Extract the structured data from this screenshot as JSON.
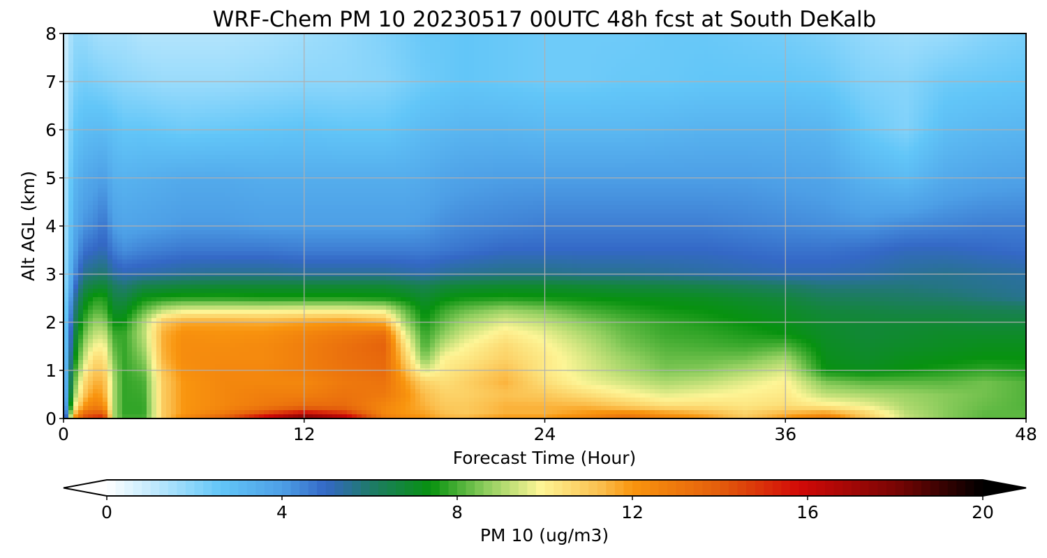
{
  "chart_data": {
    "type": "heatmap",
    "title": "WRF-Chem PM 10  20230517 00UTC 48h fcst at South DeKalb",
    "xlabel": "Forecast Time (Hour)",
    "ylabel": "Alt AGL (km)",
    "xlim": [
      0,
      48
    ],
    "ylim": [
      0,
      8
    ],
    "xticks": [
      0,
      12,
      24,
      36,
      48
    ],
    "yticks": [
      0,
      1,
      2,
      3,
      4,
      5,
      6,
      7,
      8
    ],
    "grid": true,
    "colorbar": {
      "label": "PM 10  (ug/m3)",
      "range": [
        0,
        20
      ],
      "ticks": [
        0,
        4,
        8,
        12,
        16,
        20
      ],
      "extend": "both",
      "orientation": "horizontal",
      "stops": [
        {
          "v": 0,
          "color": "#ffffff"
        },
        {
          "v": 1.5,
          "color": "#a6e0fc"
        },
        {
          "v": 2.6,
          "color": "#62c6f8"
        },
        {
          "v": 4,
          "color": "#4d9fe6"
        },
        {
          "v": 5,
          "color": "#3468c6"
        },
        {
          "v": 6,
          "color": "#1f7a6a"
        },
        {
          "v": 7.4,
          "color": "#07920f"
        },
        {
          "v": 8.7,
          "color": "#92cf60"
        },
        {
          "v": 9.9,
          "color": "#fdf596"
        },
        {
          "v": 11.3,
          "color": "#fbbe4c"
        },
        {
          "v": 12,
          "color": "#f9950e"
        },
        {
          "v": 14,
          "color": "#e35d0c"
        },
        {
          "v": 15.8,
          "color": "#d20a08"
        },
        {
          "v": 18,
          "color": "#7a0504"
        },
        {
          "v": 20,
          "color": "#000000"
        }
      ]
    },
    "x_hours": [
      0,
      0.5,
      1,
      1.5,
      2,
      2.5,
      3,
      4,
      5,
      6,
      8,
      10,
      12,
      14,
      16,
      17,
      18,
      19,
      20,
      22,
      24,
      26,
      28,
      30,
      32,
      34,
      36,
      38,
      40,
      42,
      44,
      46,
      48
    ],
    "z_km": [
      0,
      0.1,
      0.25,
      0.5,
      0.75,
      1,
      1.25,
      1.5,
      1.75,
      2,
      2.25,
      2.5,
      2.75,
      3,
      3.5,
      4,
      5,
      6,
      7,
      8
    ],
    "values": [
      [
        3,
        12,
        14.5,
        15,
        15.5,
        9,
        8,
        8,
        11,
        12.5,
        14,
        16.5,
        18.5,
        17,
        13,
        12.5,
        12,
        11.5,
        11.5,
        12,
        12,
        12.5,
        13.5,
        12.5,
        12,
        11,
        12,
        13,
        11,
        9.3,
        8.6,
        8.2,
        8.2
      ],
      [
        2.5,
        11,
        13.5,
        14,
        14,
        9,
        7.8,
        7.8,
        11,
        12,
        13,
        14.5,
        16,
        15,
        12.5,
        12,
        11.8,
        11.3,
        11,
        11.5,
        11.5,
        12,
        12.5,
        12,
        11.5,
        10.8,
        11.5,
        12,
        10.8,
        9.2,
        8.6,
        8.2,
        8.2
      ],
      [
        2.3,
        9.5,
        12,
        12.8,
        12.5,
        9,
        7.8,
        7.8,
        11,
        12,
        12.5,
        13,
        13.5,
        13.5,
        12.5,
        12,
        11.5,
        11,
        11,
        11.5,
        11.5,
        11.5,
        11,
        10.5,
        10.5,
        10.3,
        10.5,
        10.2,
        9.8,
        9,
        8.6,
        8.3,
        8.1
      ],
      [
        2.1,
        8.5,
        11,
        12,
        11.8,
        9,
        7.8,
        7.9,
        11,
        12,
        12.5,
        12.8,
        12.8,
        13.2,
        13,
        12.2,
        11.3,
        10.8,
        10.8,
        11.2,
        11,
        10.5,
        10,
        9.6,
        9.8,
        10,
        10.2,
        9.2,
        9,
        8.8,
        8.6,
        8.4,
        8.1
      ],
      [
        2,
        8,
        10.5,
        11.5,
        11.5,
        9,
        7.8,
        8,
        11,
        12,
        12.5,
        12.5,
        12.5,
        13,
        13.2,
        12,
        10.8,
        10.5,
        10.8,
        11.5,
        10.5,
        9.8,
        9.4,
        9,
        9.2,
        9.6,
        10,
        8.5,
        8.2,
        8.2,
        8.2,
        8.4,
        8.1
      ],
      [
        2,
        7.5,
        9.8,
        11,
        11,
        8.8,
        7.8,
        8.3,
        11.2,
        12.2,
        12.5,
        12.5,
        12.8,
        13.2,
        13.5,
        11.5,
        9.5,
        10.2,
        10.5,
        11.2,
        10.2,
        9.6,
        9,
        8.5,
        8.6,
        9,
        9.5,
        7.4,
        7.2,
        7.4,
        7.6,
        7.8,
        7.6
      ],
      [
        1.9,
        7,
        9.2,
        10.5,
        10.5,
        8.5,
        7.8,
        8.6,
        11.5,
        12.3,
        12.4,
        12.4,
        12.8,
        13.3,
        13.6,
        11,
        8.5,
        10,
        10.2,
        10.8,
        10.2,
        9.5,
        8.8,
        8.3,
        8.3,
        8.4,
        8.9,
        7.2,
        7,
        7.2,
        7.3,
        7.4,
        7.4
      ],
      [
        1.8,
        6.6,
        8.8,
        9.8,
        10,
        8.2,
        7.8,
        8.9,
        11.6,
        12.3,
        12.3,
        12.4,
        12.8,
        13.3,
        13.8,
        10.5,
        8,
        9.3,
        9.9,
        10.6,
        10,
        9.3,
        8.5,
        8.1,
        8,
        7.9,
        8.1,
        7.1,
        6.9,
        7,
        7.1,
        7.2,
        7.2
      ],
      [
        1.8,
        6.3,
        8.3,
        9.2,
        9.4,
        7.9,
        7.8,
        9.1,
        11.6,
        12.2,
        12.1,
        12.2,
        12.6,
        13,
        13.4,
        9.8,
        7.8,
        8.7,
        9.4,
        10.2,
        9.7,
        9,
        8.3,
        7.9,
        7.8,
        7.6,
        7.4,
        7,
        6.8,
        6.9,
        7,
        7,
        7
      ],
      [
        1.7,
        5.9,
        7.8,
        8.7,
        8.7,
        7.4,
        7.4,
        9,
        11.1,
        11.7,
        11.7,
        11.6,
        11.8,
        12,
        11.6,
        8.9,
        7.5,
        8.3,
        8.9,
        9.6,
        9.2,
        8.6,
        8.1,
        7.8,
        7.6,
        7.4,
        7.2,
        6.9,
        6.8,
        6.8,
        6.8,
        6.7,
        6.7
      ],
      [
        1.6,
        5.5,
        7.4,
        8.1,
        8.1,
        7,
        7,
        8.2,
        9.2,
        9.6,
        9.7,
        9.7,
        9.8,
        9.8,
        9.6,
        8.3,
        7.2,
        7.9,
        8.3,
        8.8,
        8.5,
        8,
        7.7,
        7.5,
        7.4,
        7.2,
        7,
        6.7,
        6.6,
        6.5,
        6.5,
        6.4,
        6.3
      ],
      [
        1.5,
        5.1,
        6.9,
        7.6,
        7.7,
        6.6,
        6.5,
        7.4,
        7.6,
        7.7,
        7.7,
        7.6,
        7.6,
        7.6,
        7.5,
        7.3,
        6.9,
        7.3,
        7.5,
        7.6,
        7.5,
        7.4,
        7.3,
        7.2,
        7.1,
        6.9,
        6.7,
        6.3,
        6.2,
        6.1,
        6,
        5.8,
        5.6
      ],
      [
        1.4,
        4.6,
        6.3,
        6.7,
        6.9,
        6.2,
        5.9,
        6.5,
        6.6,
        6.7,
        6.8,
        6.8,
        6.8,
        6.8,
        6.8,
        6.6,
        6.4,
        6.7,
        6.8,
        6.9,
        6.9,
        6.8,
        6.7,
        6.6,
        6.5,
        6.3,
        6.1,
        5.8,
        5.8,
        5.8,
        5.7,
        5.6,
        5.5
      ],
      [
        1.3,
        4.2,
        5.6,
        5.8,
        6,
        5.4,
        5.2,
        5.3,
        5.4,
        5.5,
        5.6,
        5.6,
        5.5,
        5.5,
        5.5,
        5.4,
        5.3,
        5.5,
        5.6,
        5.7,
        5.7,
        5.6,
        5.6,
        5.5,
        5.4,
        5.3,
        5.2,
        5.2,
        5.3,
        5.5,
        5.6,
        5.5,
        5.4
      ],
      [
        1.2,
        3.8,
        4.8,
        5,
        5.2,
        4.6,
        4.3,
        4.5,
        4.6,
        4.7,
        4.7,
        4.7,
        4.6,
        4.6,
        4.6,
        4.6,
        4.6,
        4.7,
        4.8,
        5,
        5,
        5,
        5,
        5,
        5,
        4.9,
        4.8,
        4.8,
        4.9,
        5.1,
        5.1,
        5,
        4.9
      ],
      [
        1.1,
        3.5,
        4.2,
        4.4,
        4.8,
        4,
        3.8,
        3.9,
        4,
        4.1,
        4.1,
        4,
        4,
        4,
        4,
        4,
        4.1,
        4.3,
        4.4,
        4.5,
        4.6,
        4.6,
        4.6,
        4.6,
        4.6,
        4.5,
        4.4,
        4.3,
        4.2,
        4.4,
        4.5,
        4.6,
        4.6
      ],
      [
        1,
        3.1,
        3.6,
        3.8,
        4,
        3.4,
        3.3,
        3.4,
        3.5,
        3.6,
        3.6,
        3.5,
        3.5,
        3.5,
        3.5,
        3.5,
        3.6,
        3.8,
        3.9,
        4,
        4,
        4,
        4,
        4,
        4,
        4,
        3.9,
        3.8,
        3.3,
        3,
        3.6,
        3.8,
        3.9
      ],
      [
        0.9,
        2.6,
        2.9,
        3,
        3,
        2.8,
        2.6,
        2.6,
        2.5,
        2.4,
        2.5,
        2.6,
        2.7,
        2.6,
        2.6,
        2.8,
        3,
        3.1,
        3.2,
        3.2,
        3.1,
        3.1,
        3.1,
        3.2,
        3.3,
        3.3,
        3.3,
        3.2,
        2.5,
        2.1,
        2.9,
        3.1,
        3.2
      ],
      [
        0.8,
        2.1,
        2.3,
        2.2,
        2.1,
        2,
        1.9,
        1.8,
        1.7,
        1.7,
        1.7,
        1.8,
        1.9,
        1.9,
        2,
        2.2,
        2.4,
        2.5,
        2.6,
        2.5,
        2.4,
        2.4,
        2.5,
        2.5,
        2.6,
        2.6,
        2.6,
        2.5,
        2.1,
        2,
        2.4,
        2.5,
        2.6
      ],
      [
        0.6,
        1.8,
        1.8,
        1.6,
        1.5,
        1.5,
        1.5,
        1.3,
        1.3,
        1.3,
        1.3,
        1.4,
        1.6,
        1.8,
        2.1,
        2.3,
        2.5,
        2.5,
        2.6,
        2.5,
        2.4,
        2.4,
        2.4,
        2.5,
        2.5,
        2.4,
        2.3,
        2.1,
        1.8,
        1.6,
        1.7,
        2,
        2.2
      ]
    ]
  }
}
